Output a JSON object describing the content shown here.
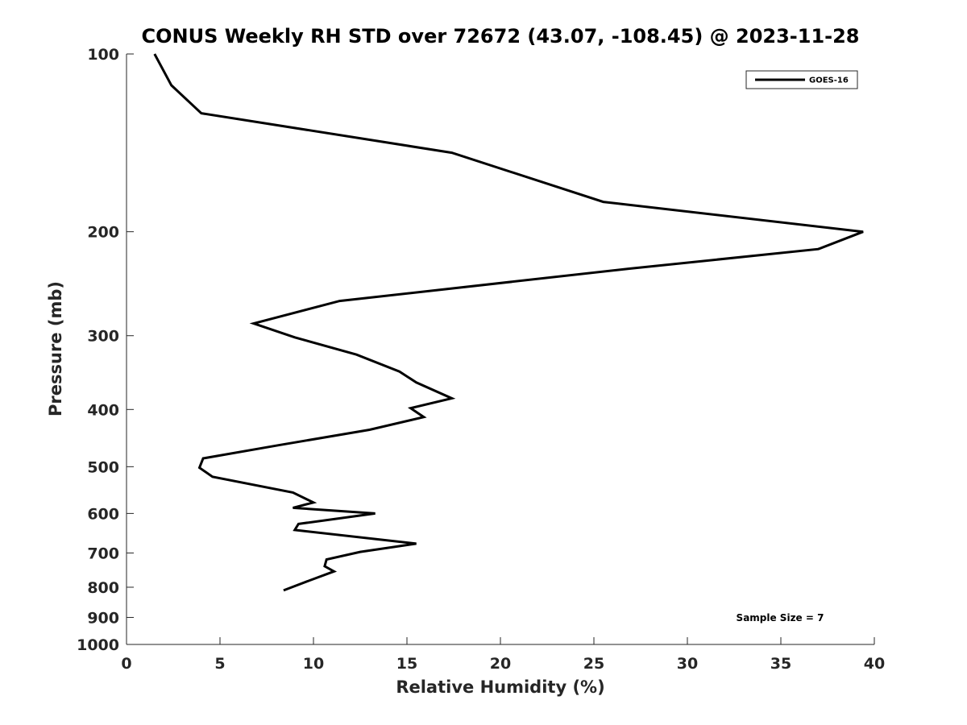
{
  "chart_data": {
    "type": "line",
    "title": "CONUS Weekly RH STD over 72672 (43.07, -108.45) @ 2023-11-28",
    "xlabel": "Relative Humidity (%)",
    "ylabel": "Pressure (mb)",
    "xlim": [
      0,
      40
    ],
    "ylim": [
      100,
      1000
    ],
    "yscale": "log",
    "y_reversed": true,
    "xticks": [
      0,
      5,
      10,
      15,
      20,
      25,
      30,
      35,
      40
    ],
    "yticks": [
      100,
      200,
      300,
      400,
      500,
      600,
      700,
      800,
      900,
      1000
    ],
    "grid": false,
    "legend_position": "top-right",
    "series": [
      {
        "name": "GOES-16",
        "color": "#000000",
        "x": [
          1.5,
          2.4,
          4.0,
          17.4,
          25.5,
          39.4,
          37.0,
          26.9,
          11.4,
          6.8,
          9.0,
          12.3,
          14.6,
          15.5,
          17.4,
          15.2,
          15.9,
          13.0,
          8.1,
          4.1,
          3.9,
          4.6,
          8.9,
          10.0,
          8.9,
          13.3,
          9.2,
          9.0,
          15.5,
          12.5,
          10.7,
          10.6,
          11.1,
          9.8,
          8.4
        ],
        "y": [
          100,
          113,
          126,
          147,
          178,
          200,
          214,
          231,
          262,
          286,
          302,
          323,
          345,
          360,
          383,
          398,
          412,
          433,
          460,
          484,
          502,
          520,
          553,
          575,
          587,
          600,
          625,
          640,
          675,
          697,
          718,
          737,
          752,
          779,
          810
        ]
      }
    ],
    "annotations": [
      {
        "text": "Sample Size = 7"
      }
    ]
  }
}
